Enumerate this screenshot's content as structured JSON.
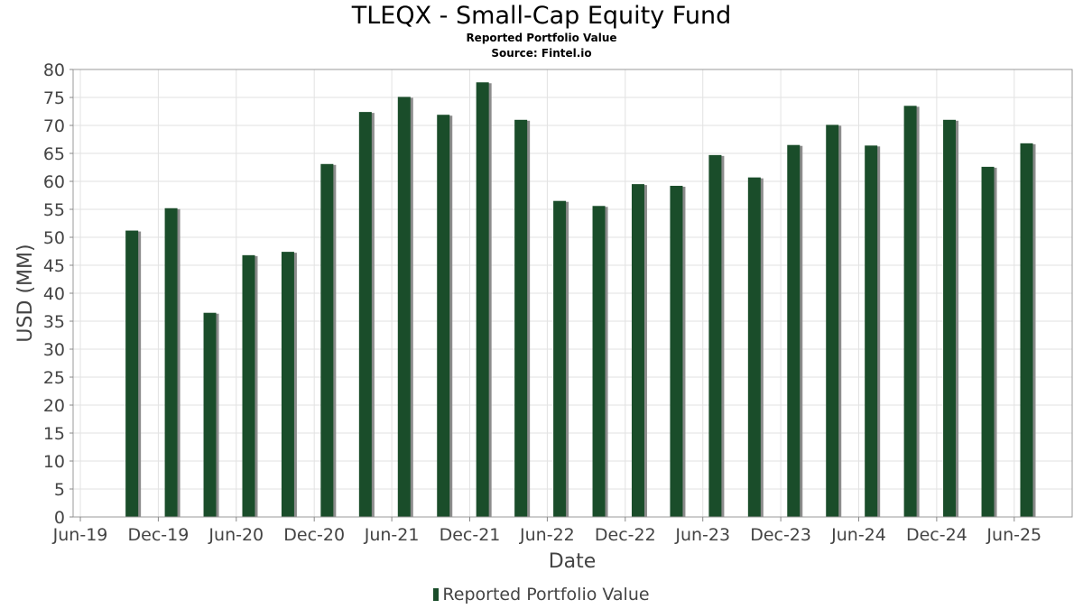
{
  "chart_data": {
    "type": "bar",
    "title": "TLEQX - Small-Cap Equity Fund",
    "subtitles": [
      "Reported Portfolio Value",
      "Source: Fintel.io"
    ],
    "xlabel": "Date",
    "ylabel": "USD (MM)",
    "ylim": [
      0,
      80
    ],
    "yticks": [
      0,
      5,
      10,
      15,
      20,
      25,
      30,
      35,
      40,
      45,
      50,
      55,
      60,
      65,
      70,
      75,
      80
    ],
    "xlim": [
      "2019-05-15",
      "2025-10-15"
    ],
    "xticks": [
      {
        "label": "Jun-19",
        "date": "2019-06-01"
      },
      {
        "label": "Dec-19",
        "date": "2019-12-01"
      },
      {
        "label": "Jun-20",
        "date": "2020-06-01"
      },
      {
        "label": "Dec-20",
        "date": "2020-12-01"
      },
      {
        "label": "Jun-21",
        "date": "2021-06-01"
      },
      {
        "label": "Dec-21",
        "date": "2021-12-01"
      },
      {
        "label": "Jun-22",
        "date": "2022-06-01"
      },
      {
        "label": "Dec-22",
        "date": "2022-12-01"
      },
      {
        "label": "Jun-23",
        "date": "2023-06-01"
      },
      {
        "label": "Dec-23",
        "date": "2023-12-01"
      },
      {
        "label": "Jun-24",
        "date": "2024-06-01"
      },
      {
        "label": "Dec-24",
        "date": "2024-12-01"
      },
      {
        "label": "Jun-25",
        "date": "2025-06-01"
      }
    ],
    "grid": true,
    "legend_position": "bottom",
    "series": [
      {
        "name": "Reported Portfolio Value",
        "color": "#1a4d2a",
        "points": [
          {
            "date": "2019-09-30",
            "value": 51.2
          },
          {
            "date": "2019-12-31",
            "value": 55.2
          },
          {
            "date": "2020-03-31",
            "value": 36.5
          },
          {
            "date": "2020-06-30",
            "value": 46.8
          },
          {
            "date": "2020-09-30",
            "value": 47.4
          },
          {
            "date": "2020-12-31",
            "value": 63.1
          },
          {
            "date": "2021-03-31",
            "value": 72.4
          },
          {
            "date": "2021-06-30",
            "value": 75.1
          },
          {
            "date": "2021-09-30",
            "value": 71.9
          },
          {
            "date": "2021-12-31",
            "value": 77.7
          },
          {
            "date": "2022-03-31",
            "value": 71.0
          },
          {
            "date": "2022-06-30",
            "value": 56.5
          },
          {
            "date": "2022-09-30",
            "value": 55.6
          },
          {
            "date": "2022-12-31",
            "value": 59.5
          },
          {
            "date": "2023-03-31",
            "value": 59.2
          },
          {
            "date": "2023-06-30",
            "value": 64.7
          },
          {
            "date": "2023-09-30",
            "value": 60.7
          },
          {
            "date": "2023-12-31",
            "value": 66.5
          },
          {
            "date": "2024-03-31",
            "value": 70.1
          },
          {
            "date": "2024-06-30",
            "value": 66.4
          },
          {
            "date": "2024-09-30",
            "value": 73.5
          },
          {
            "date": "2024-12-31",
            "value": 71.0
          },
          {
            "date": "2025-03-31",
            "value": 62.6
          },
          {
            "date": "2025-06-30",
            "value": 66.8
          }
        ]
      }
    ]
  }
}
